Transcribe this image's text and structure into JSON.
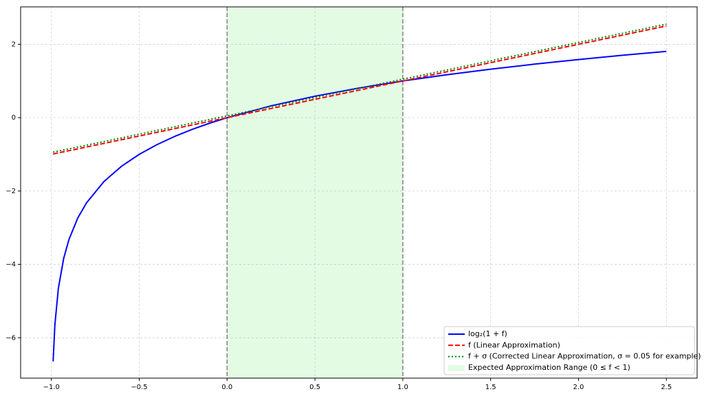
{
  "chart_data": {
    "type": "line",
    "x": [
      -0.99,
      -0.98,
      -0.96,
      -0.93,
      -0.9,
      -0.85,
      -0.8,
      -0.7,
      -0.6,
      -0.5,
      -0.4,
      -0.3,
      -0.2,
      -0.1,
      0,
      0.25,
      0.5,
      0.75,
      1,
      1.25,
      1.5,
      1.75,
      2,
      2.25,
      2.5
    ],
    "series": [
      {
        "name": "log₂(1 + f)",
        "color": "#0000ff",
        "dash": "solid",
        "values": [
          -6.644,
          -5.644,
          -4.644,
          -3.837,
          -3.322,
          -2.737,
          -2.322,
          -1.737,
          -1.322,
          -1,
          -0.737,
          -0.515,
          -0.322,
          -0.152,
          0,
          0.322,
          0.585,
          0.807,
          1,
          1.17,
          1.322,
          1.459,
          1.585,
          1.7,
          1.807
        ]
      },
      {
        "name": "f (Linear Approximation)",
        "color": "#ff0000",
        "dash": "dashed",
        "values": [
          -0.99,
          -0.98,
          -0.96,
          -0.93,
          -0.9,
          -0.85,
          -0.8,
          -0.7,
          -0.6,
          -0.5,
          -0.4,
          -0.3,
          -0.2,
          -0.1,
          0,
          0.25,
          0.5,
          0.75,
          1,
          1.25,
          1.5,
          1.75,
          2,
          2.25,
          2.5
        ]
      },
      {
        "name": "f + σ (Corrected Linear Approximation, σ = 0.05 for example)",
        "color": "#008000",
        "dash": "dotted",
        "values": [
          -0.94,
          -0.93,
          -0.91,
          -0.88,
          -0.85,
          -0.8,
          -0.75,
          -0.65,
          -0.55,
          -0.45,
          -0.35,
          -0.25,
          -0.15,
          -0.05,
          0.05,
          0.3,
          0.55,
          0.8,
          1.05,
          1.3,
          1.55,
          1.8,
          2.05,
          2.3,
          2.55
        ]
      }
    ],
    "shaded_range": {
      "x": [
        0,
        1
      ],
      "label": "Expected Approximation Range (0  ≤ f < 1)",
      "color": "#90ee90"
    },
    "vlines": [
      0,
      1
    ],
    "xlim": [
      -1.175,
      2.675
    ],
    "ylim": [
      -7.1,
      3.02
    ],
    "xticks": [
      {
        "value": -1,
        "label": "−1.0"
      },
      {
        "value": -0.5,
        "label": "−0.5"
      },
      {
        "value": 0,
        "label": "0.0"
      },
      {
        "value": 0.5,
        "label": "0.5"
      },
      {
        "value": 1,
        "label": "1.0"
      },
      {
        "value": 1.5,
        "label": "1.5"
      },
      {
        "value": 2,
        "label": "2.0"
      },
      {
        "value": 2.5,
        "label": "2.5"
      }
    ],
    "yticks": [
      {
        "value": -6,
        "label": "−6"
      },
      {
        "value": -4,
        "label": "−4"
      },
      {
        "value": -2,
        "label": "−2"
      },
      0,
      2
    ],
    "grid": true,
    "legend": "lower right"
  }
}
